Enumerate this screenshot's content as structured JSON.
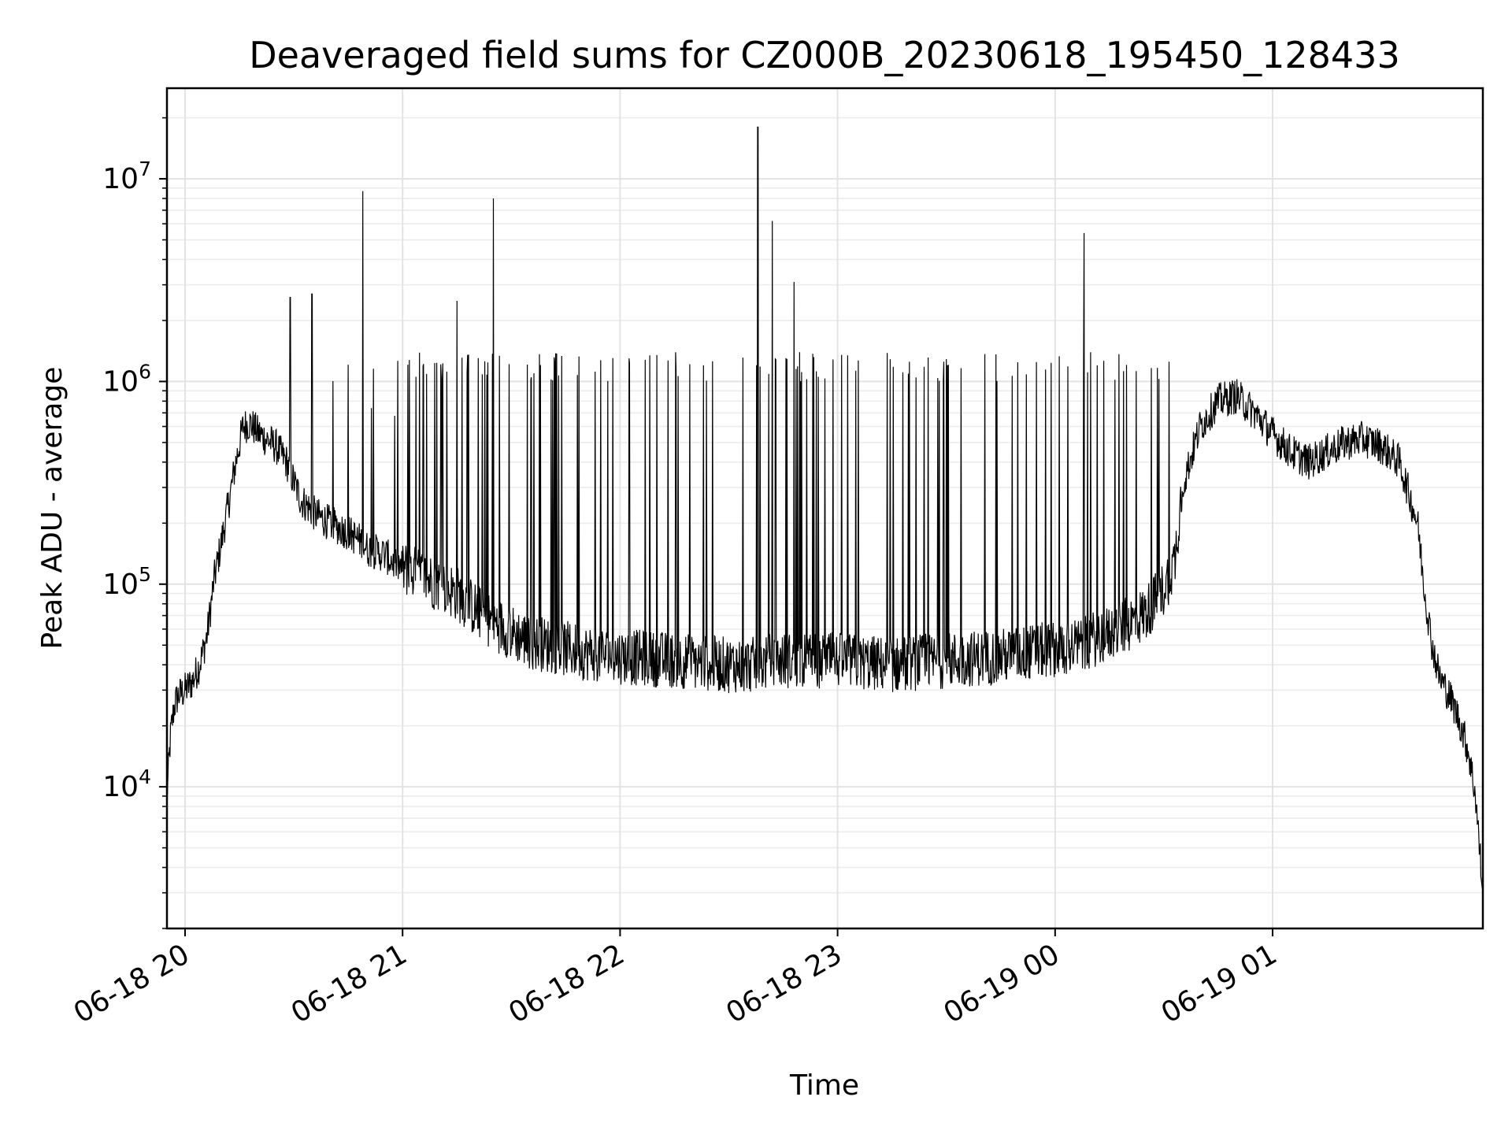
{
  "chart_data": {
    "type": "line",
    "title": "Deaveraged field sums for CZ000B_20230618_195450_128433",
    "xlabel": "Time",
    "ylabel": "Peak ADU - average",
    "yscale": "log",
    "grid": true,
    "color": "#000000",
    "xlim": [
      "2023-06-18 19:55",
      "2023-06-19 01:58"
    ],
    "ylim": [
      2000,
      28000000
    ],
    "x_ticks": [
      {
        "t": "2023-06-18 20:00",
        "label": "06-18 20"
      },
      {
        "t": "2023-06-18 21:00",
        "label": "06-18 21"
      },
      {
        "t": "2023-06-18 22:00",
        "label": "06-18 22"
      },
      {
        "t": "2023-06-18 23:00",
        "label": "06-18 23"
      },
      {
        "t": "2023-06-19 00:00",
        "label": "06-19 00"
      },
      {
        "t": "2023-06-19 01:00",
        "label": "06-19 01"
      }
    ],
    "y_ticks": [
      {
        "value": 10000,
        "base": "10",
        "exp": "4"
      },
      {
        "value": 100000,
        "base": "10",
        "exp": "5"
      },
      {
        "value": 1000000,
        "base": "10",
        "exp": "6"
      },
      {
        "value": 10000000,
        "base": "10",
        "exp": "7"
      }
    ],
    "series": [
      {
        "x": [
          "2023-06-18 19:55",
          "2023-06-18 19:56",
          "2023-06-18 19:57",
          "2023-06-18 19:58",
          "2023-06-18 20:00",
          "2023-06-18 20:02",
          "2023-06-18 20:04",
          "2023-06-18 20:06",
          "2023-06-18 20:07",
          "2023-06-18 20:08",
          "2023-06-18 20:10",
          "2023-06-18 20:12",
          "2023-06-18 20:14",
          "2023-06-18 20:16",
          "2023-06-18 20:18",
          "2023-06-18 20:20",
          "2023-06-18 20:25",
          "2023-06-18 20:28",
          "2023-06-18 20:30",
          "2023-06-18 20:32",
          "2023-06-18 20:34",
          "2023-06-18 20:36",
          "2023-06-18 20:38",
          "2023-06-18 20:40",
          "2023-06-18 20:45",
          "2023-06-18 20:49",
          "2023-06-18 20:50",
          "2023-06-18 20:55",
          "2023-06-18 20:57",
          "2023-06-18 21:00",
          "2023-06-18 21:05",
          "2023-06-18 21:10",
          "2023-06-18 21:15",
          "2023-06-18 21:20",
          "2023-06-18 21:25",
          "2023-06-18 21:30",
          "2023-06-18 21:35",
          "2023-06-18 21:40",
          "2023-06-18 21:50",
          "2023-06-18 22:00",
          "2023-06-18 22:15",
          "2023-06-18 22:30",
          "2023-06-18 22:38",
          "2023-06-18 22:42",
          "2023-06-18 22:45",
          "2023-06-18 23:00",
          "2023-06-18 23:15",
          "2023-06-18 23:30",
          "2023-06-18 23:45",
          "2023-06-19 00:00",
          "2023-06-19 00:08",
          "2023-06-19 00:10",
          "2023-06-19 00:15",
          "2023-06-19 00:20",
          "2023-06-19 00:25",
          "2023-06-19 00:30",
          "2023-06-19 00:33",
          "2023-06-19 00:35",
          "2023-06-19 00:40",
          "2023-06-19 00:45",
          "2023-06-19 00:50",
          "2023-06-19 00:55",
          "2023-06-19 01:00",
          "2023-06-19 01:05",
          "2023-06-19 01:10",
          "2023-06-19 01:15",
          "2023-06-19 01:20",
          "2023-06-19 01:25",
          "2023-06-19 01:30",
          "2023-06-19 01:35",
          "2023-06-19 01:40",
          "2023-06-19 01:42",
          "2023-06-19 01:44",
          "2023-06-19 01:46",
          "2023-06-19 01:48",
          "2023-06-19 01:50",
          "2023-06-19 01:52",
          "2023-06-19 01:54",
          "2023-06-19 01:56",
          "2023-06-19 01:58"
        ],
        "y": [
          9000,
          18000,
          25000,
          28000,
          30000,
          33000,
          40000,
          55000,
          75000,
          105000,
          160000,
          250000,
          400000,
          600000,
          620000,
          560000,
          480000,
          400000,
          320000,
          260000,
          240000,
          220000,
          210000,
          200000,
          180000,
          160000,
          150000,
          140000,
          130000,
          120000,
          110000,
          100000,
          90000,
          75000,
          65000,
          58000,
          52000,
          50000,
          46000,
          44000,
          42000,
          40000,
          40000,
          42000,
          42000,
          42000,
          40000,
          42000,
          44000,
          48000,
          50000,
          53000,
          57000,
          63000,
          72000,
          95000,
          130000,
          300000,
          600000,
          800000,
          850000,
          700000,
          550000,
          450000,
          400000,
          450000,
          500000,
          520000,
          480000,
          400000,
          200000,
          90000,
          50000,
          35000,
          30000,
          25000,
          20000,
          15000,
          9000,
          3000
        ]
      }
    ],
    "spikes": [
      {
        "t": "2023-06-18 20:29",
        "y": 2600000
      },
      {
        "t": "2023-06-18 20:35",
        "y": 2700000
      },
      {
        "t": "2023-06-18 20:49",
        "y": 8700000
      },
      {
        "t": "2023-06-18 21:15",
        "y": 2500000
      },
      {
        "t": "2023-06-18 21:25",
        "y": 8000000
      },
      {
        "t": "2023-06-18 22:38",
        "y": 18000000
      },
      {
        "t": "2023-06-18 22:42",
        "y": 6200000
      },
      {
        "t": "2023-06-18 22:48",
        "y": 3100000
      },
      {
        "t": "2023-06-19 00:08",
        "y": 5400000
      }
    ]
  }
}
